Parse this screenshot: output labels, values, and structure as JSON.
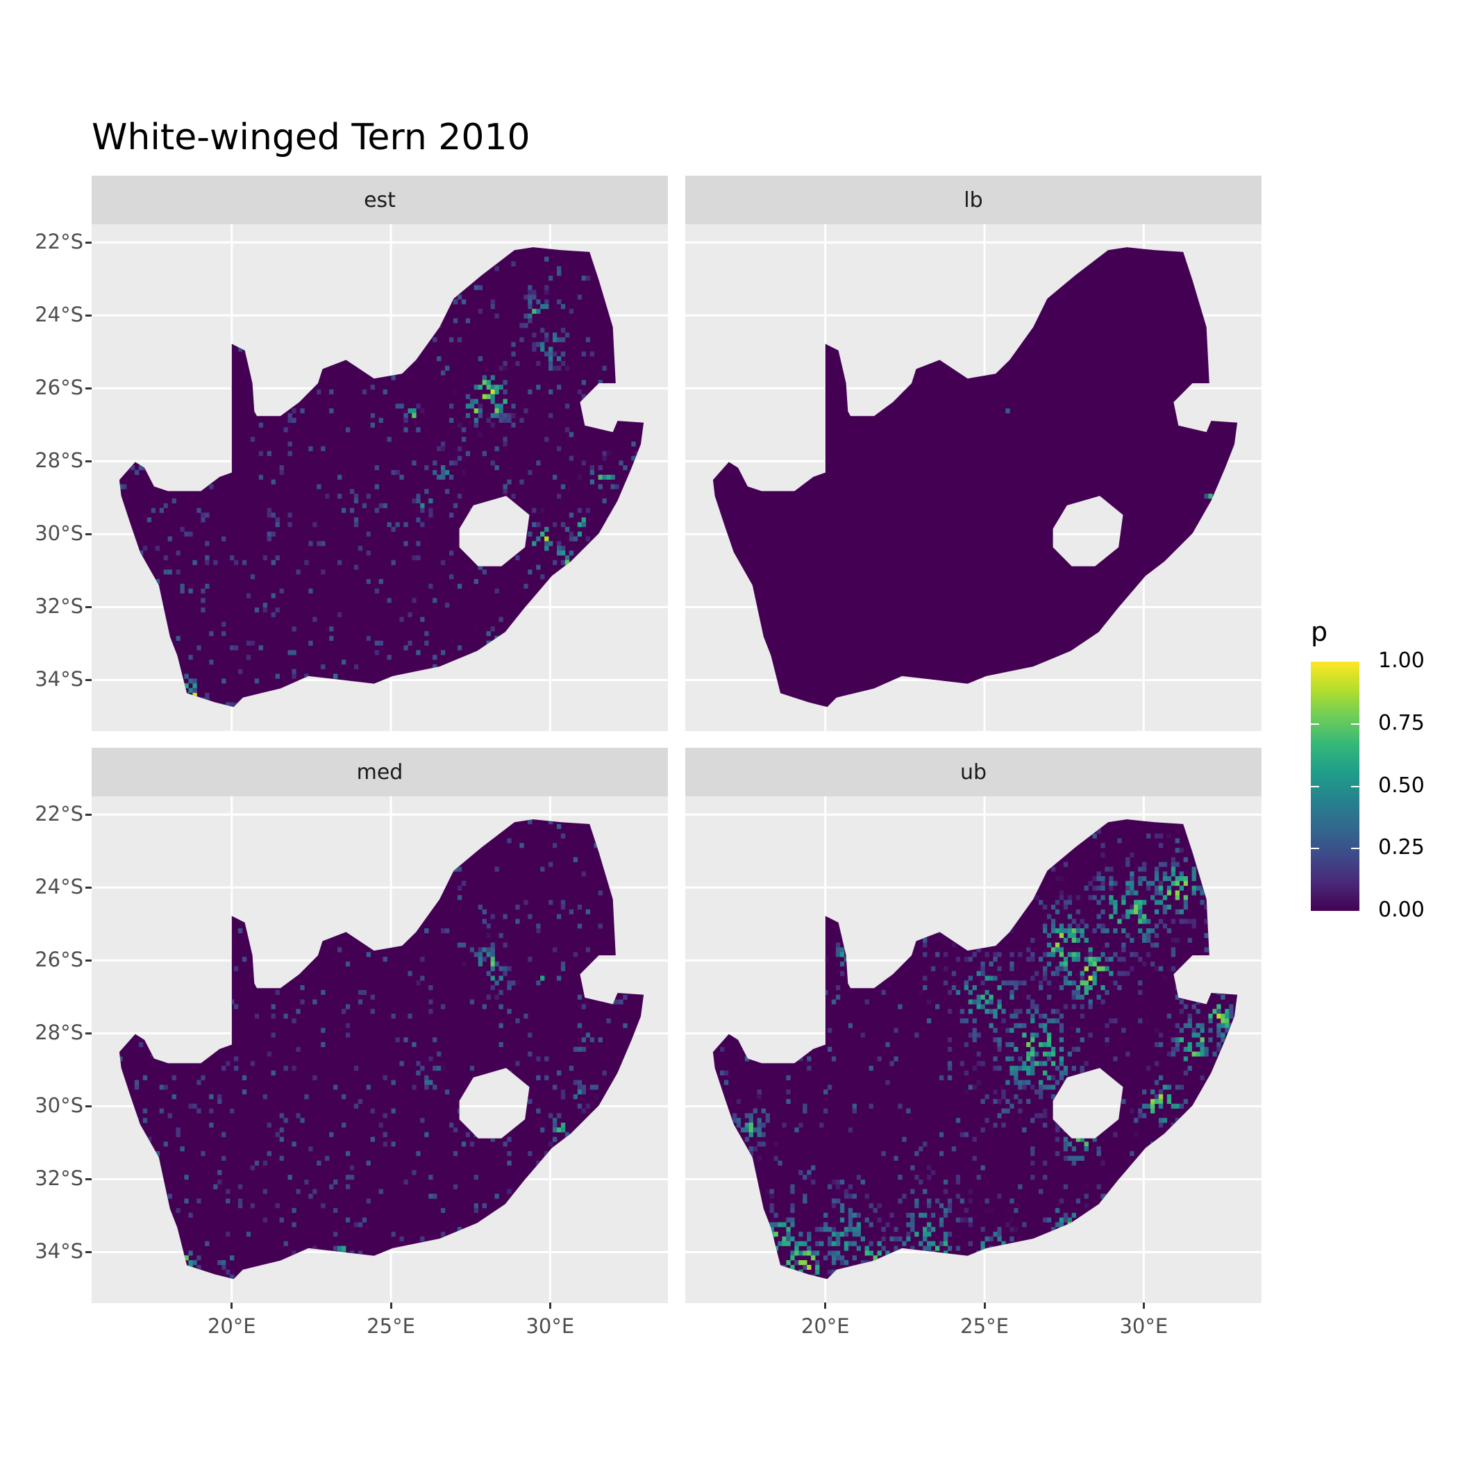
{
  "title": "White-winged Tern 2010",
  "legend": {
    "title": "p",
    "colormap": "viridis",
    "range": [
      0,
      1
    ],
    "ticks": [
      {
        "value": 1.0,
        "label": "1.00"
      },
      {
        "value": 0.75,
        "label": "0.75"
      },
      {
        "value": 0.5,
        "label": "0.50"
      },
      {
        "value": 0.25,
        "label": "0.25"
      },
      {
        "value": 0.0,
        "label": "0.00"
      }
    ]
  },
  "colors": {
    "panel_background": "#EBEBEB",
    "strip_background": "#D9D9D9",
    "gridline": "#FFFFFF",
    "low": "#440154",
    "high": "#FDE725"
  },
  "chart_data": {
    "type": "heatmap",
    "title": "White-winged Tern 2010",
    "xlim": [
      15.6,
      33.7
    ],
    "ylim": [
      -35.4,
      -21.5
    ],
    "grid": true,
    "legend_position": "right",
    "x_ticks": [
      {
        "value": 20,
        "label": "20°E"
      },
      {
        "value": 25,
        "label": "25°E"
      },
      {
        "value": 30,
        "label": "30°E"
      }
    ],
    "y_ticks": [
      {
        "value": -22,
        "label": "22°S"
      },
      {
        "value": -24,
        "label": "24°S"
      },
      {
        "value": -26,
        "label": "26°S"
      },
      {
        "value": -28,
        "label": "28°S"
      },
      {
        "value": -30,
        "label": "30°S"
      },
      {
        "value": -32,
        "label": "32°S"
      },
      {
        "value": -34,
        "label": "34°S"
      }
    ],
    "outline": [
      [
        16.47,
        -28.51
      ],
      [
        16.97,
        -28.02
      ],
      [
        17.26,
        -28.18
      ],
      [
        17.56,
        -28.69
      ],
      [
        18.0,
        -28.82
      ],
      [
        19.03,
        -28.82
      ],
      [
        19.62,
        -28.43
      ],
      [
        20.0,
        -28.31
      ],
      [
        20.0,
        -24.78
      ],
      [
        20.41,
        -24.96
      ],
      [
        20.65,
        -25.86
      ],
      [
        20.71,
        -26.63
      ],
      [
        20.79,
        -26.76
      ],
      [
        21.53,
        -26.76
      ],
      [
        22.12,
        -26.38
      ],
      [
        22.71,
        -25.86
      ],
      [
        22.85,
        -25.47
      ],
      [
        23.59,
        -25.22
      ],
      [
        24.47,
        -25.73
      ],
      [
        25.35,
        -25.6
      ],
      [
        25.79,
        -25.22
      ],
      [
        26.53,
        -24.32
      ],
      [
        26.97,
        -23.54
      ],
      [
        27.85,
        -22.9
      ],
      [
        28.88,
        -22.21
      ],
      [
        29.47,
        -22.13
      ],
      [
        30.35,
        -22.21
      ],
      [
        31.24,
        -22.26
      ],
      [
        31.53,
        -23.03
      ],
      [
        31.97,
        -24.32
      ],
      [
        32.06,
        -25.86
      ],
      [
        31.53,
        -25.86
      ],
      [
        30.94,
        -26.38
      ],
      [
        31.09,
        -27.02
      ],
      [
        31.97,
        -27.2
      ],
      [
        32.12,
        -26.89
      ],
      [
        32.94,
        -26.94
      ],
      [
        32.85,
        -27.53
      ],
      [
        32.56,
        -28.18
      ],
      [
        32.12,
        -29.08
      ],
      [
        31.53,
        -29.98
      ],
      [
        30.65,
        -30.75
      ],
      [
        30.06,
        -31.14
      ],
      [
        29.18,
        -32.04
      ],
      [
        28.59,
        -32.68
      ],
      [
        27.71,
        -33.2
      ],
      [
        26.53,
        -33.63
      ],
      [
        25.06,
        -33.89
      ],
      [
        24.47,
        -34.1
      ],
      [
        22.41,
        -33.89
      ],
      [
        21.53,
        -34.23
      ],
      [
        20.35,
        -34.48
      ],
      [
        20.06,
        -34.74
      ],
      [
        19.47,
        -34.61
      ],
      [
        18.59,
        -34.36
      ],
      [
        18.29,
        -33.33
      ],
      [
        18.06,
        -32.81
      ],
      [
        17.71,
        -31.4
      ],
      [
        17.12,
        -30.49
      ],
      [
        16.82,
        -29.72
      ],
      [
        16.53,
        -28.95
      ]
    ],
    "hole": [
      [
        27.15,
        -29.85
      ],
      [
        27.59,
        -29.21
      ],
      [
        28.62,
        -28.95
      ],
      [
        29.35,
        -29.47
      ],
      [
        29.21,
        -30.36
      ],
      [
        28.47,
        -30.88
      ],
      [
        27.74,
        -30.88
      ],
      [
        27.15,
        -30.36
      ]
    ],
    "facets": [
      {
        "label": "est",
        "hotspots": [
          [
            28.0,
            -26.0,
            1,
            0.35
          ],
          [
            28.3,
            -26.4,
            0.9,
            0.3
          ],
          [
            27.6,
            -26.5,
            0.8,
            0.3
          ],
          [
            25.6,
            -26.6,
            1,
            0.15
          ],
          [
            29.5,
            -23.8,
            0.7,
            0.3
          ],
          [
            30.0,
            -24.8,
            0.6,
            0.4
          ],
          [
            29.7,
            -30.0,
            0.95,
            0.3
          ],
          [
            30.4,
            -30.6,
            0.9,
            0.25
          ],
          [
            30.8,
            -29.7,
            0.8,
            0.3
          ],
          [
            31.6,
            -28.4,
            0.7,
            0.3
          ],
          [
            26.5,
            -28.2,
            0.6,
            0.3
          ],
          [
            26.0,
            -29.0,
            0.7,
            0.2
          ],
          [
            18.5,
            -34.2,
            0.9,
            0.3
          ],
          [
            18.8,
            -34.4,
            1,
            0.2
          ],
          [
            22.6,
            -34.0,
            0.9,
            0.2
          ],
          [
            23.1,
            -34.0,
            0.8,
            0.2
          ],
          [
            25.6,
            -34.0,
            0.8,
            0.2
          ],
          [
            28.2,
            -32.9,
            0.6,
            0.25
          ]
        ]
      },
      {
        "label": "lb",
        "hotspots": [
          [
            27.5,
            -25.3,
            0.6,
            0.1
          ],
          [
            25.6,
            -26.6,
            0.7,
            0.08
          ],
          [
            24.3,
            -32.4,
            0.4,
            0.08
          ],
          [
            18.5,
            -34.3,
            0.9,
            0.06
          ],
          [
            32.0,
            -28.9,
            0.7,
            0.08
          ],
          [
            29.7,
            -26.9,
            0.5,
            0.08
          ],
          [
            28.2,
            -26.0,
            0.4,
            0.15
          ]
        ]
      },
      {
        "label": "med",
        "hotspots": [
          [
            28.0,
            -26.0,
            0.9,
            0.3
          ],
          [
            28.3,
            -26.4,
            0.8,
            0.25
          ],
          [
            25.6,
            -26.6,
            1,
            0.1
          ],
          [
            29.6,
            -26.4,
            0.7,
            0.15
          ],
          [
            30.2,
            -30.5,
            0.8,
            0.25
          ],
          [
            30.8,
            -29.7,
            0.6,
            0.25
          ],
          [
            18.5,
            -34.2,
            0.8,
            0.25
          ],
          [
            19.8,
            -34.2,
            0.7,
            0.2
          ],
          [
            23.4,
            -34.0,
            0.9,
            0.2
          ],
          [
            25.2,
            -34.0,
            0.7,
            0.2
          ],
          [
            26.2,
            -29.2,
            0.5,
            0.2
          ]
        ]
      },
      {
        "label": "ub",
        "hotspots": [
          [
            28.2,
            -26.2,
            1,
            0.6
          ],
          [
            27.5,
            -25.5,
            0.9,
            0.7
          ],
          [
            29.5,
            -24.5,
            0.8,
            0.8
          ],
          [
            31.0,
            -24.0,
            0.9,
            0.6
          ],
          [
            30.5,
            -29.8,
            1,
            0.45
          ],
          [
            31.5,
            -28.2,
            0.9,
            0.5
          ],
          [
            32.3,
            -27.5,
            0.9,
            0.4
          ],
          [
            26.5,
            -28.5,
            0.8,
            0.9
          ],
          [
            25.0,
            -27.0,
            0.7,
            0.8
          ],
          [
            28.0,
            -30.8,
            0.8,
            0.5
          ],
          [
            19.2,
            -34.2,
            1,
            0.5
          ],
          [
            18.5,
            -33.5,
            0.8,
            0.5
          ],
          [
            21.5,
            -34.1,
            0.9,
            0.4
          ],
          [
            23.5,
            -34.0,
            1,
            0.4
          ],
          [
            25.2,
            -33.9,
            0.9,
            0.4
          ],
          [
            27.5,
            -33.2,
            0.8,
            0.4
          ],
          [
            23.0,
            -33.2,
            0.6,
            0.8
          ],
          [
            20.5,
            -33.5,
            0.6,
            0.8
          ],
          [
            17.6,
            -30.5,
            0.7,
            0.4
          ],
          [
            20.6,
            -25.8,
            0.6,
            0.3
          ]
        ]
      }
    ]
  }
}
